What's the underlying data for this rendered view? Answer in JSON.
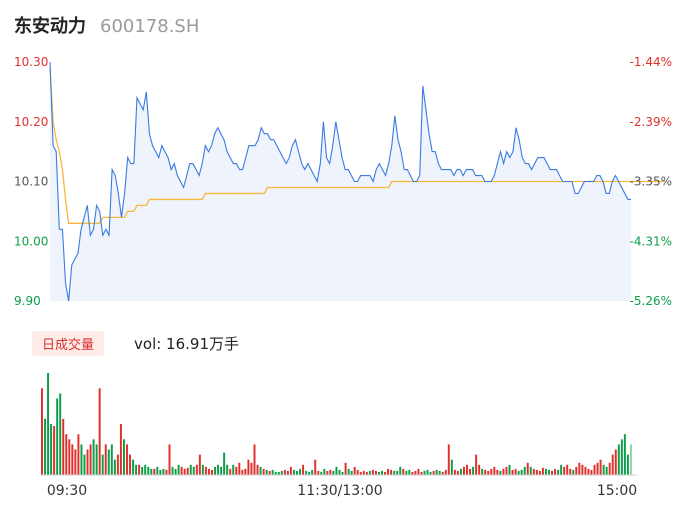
{
  "header": {
    "name": "东安动力",
    "code": "600178.SH"
  },
  "volume": {
    "badge": "日成交量",
    "text": "vol: 16.91万手"
  },
  "colors": {
    "price_line": "#3a7be0",
    "avg_line": "#f6b83c",
    "up": "#e0302c",
    "down": "#0e9e4a",
    "area_fill": "#eef3fc"
  },
  "chart_data": [
    {
      "type": "line",
      "title": "",
      "y_left_ticks": [
        "10.30",
        "10.20",
        "10.10",
        "10.00",
        "9.90"
      ],
      "y_right_ticks": [
        "-1.44%",
        "-2.39%",
        "-3.35%",
        "-4.31%",
        "-5.26%"
      ],
      "ylim": [
        9.9,
        10.3
      ],
      "x_ticks": [
        "09:30",
        "11:30/13:00",
        "15:00"
      ],
      "grid": false,
      "series": [
        {
          "values": [
            10.3,
            10.16,
            10.15,
            10.02,
            10.02,
            9.93,
            9.9,
            9.96,
            9.97,
            9.98,
            10.02,
            10.04,
            10.06,
            10.01,
            10.02,
            10.06,
            10.05,
            10.01,
            10.02,
            10.01,
            10.12,
            10.11,
            10.08,
            10.04,
            10.08,
            10.14,
            10.13,
            10.13,
            10.24,
            10.23,
            10.22,
            10.25,
            10.18,
            10.16,
            10.15,
            10.14,
            10.16,
            10.15,
            10.14,
            10.12,
            10.13,
            10.11,
            10.1,
            10.09,
            10.11,
            10.13,
            10.13,
            10.12,
            10.11,
            10.13,
            10.16,
            10.15,
            10.16,
            10.18,
            10.19,
            10.18,
            10.17,
            10.15,
            10.14,
            10.13,
            10.13,
            10.12,
            10.12,
            10.14,
            10.16,
            10.16,
            10.16,
            10.17,
            10.19,
            10.18,
            10.18,
            10.17,
            10.17,
            10.16,
            10.15,
            10.14,
            10.13,
            10.14,
            10.16,
            10.17,
            10.15,
            10.13,
            10.12,
            10.13,
            10.12,
            10.11,
            10.1,
            10.13,
            10.2,
            10.14,
            10.13,
            10.16,
            10.2,
            10.17,
            10.14,
            10.12,
            10.12,
            10.11,
            10.1,
            10.1,
            10.11,
            10.11,
            10.11,
            10.11,
            10.1,
            10.12,
            10.13,
            10.12,
            10.11,
            10.13,
            10.16,
            10.21,
            10.17,
            10.15,
            10.12,
            10.12,
            10.11,
            10.1,
            10.1,
            10.11,
            10.26,
            10.22,
            10.18,
            10.15,
            10.15,
            10.13,
            10.12,
            10.12,
            10.12,
            10.12,
            10.11,
            10.12,
            10.12,
            10.11,
            10.12,
            10.12,
            10.12,
            10.11,
            10.11,
            10.11,
            10.1,
            10.1,
            10.1,
            10.11,
            10.13,
            10.15,
            10.13,
            10.15,
            10.14,
            10.15,
            10.19,
            10.17,
            10.14,
            10.13,
            10.13,
            10.12,
            10.13,
            10.14,
            10.14,
            10.14,
            10.13,
            10.12,
            10.12,
            10.12,
            10.11,
            10.1,
            10.1,
            10.1,
            10.1,
            10.08,
            10.08,
            10.09,
            10.1,
            10.1,
            10.1,
            10.1,
            10.11,
            10.11,
            10.1,
            10.08,
            10.08,
            10.1,
            10.11,
            10.1,
            10.09,
            10.08,
            10.07,
            10.07
          ],
          "name": ""
        },
        {
          "values": [
            10.29,
            10.2,
            10.17,
            10.15,
            10.12,
            10.07,
            10.03,
            10.03,
            10.03,
            10.03,
            10.03,
            10.03,
            10.03,
            10.03,
            10.03,
            10.03,
            10.03,
            10.04,
            10.04,
            10.04,
            10.04,
            10.04,
            10.04,
            10.04,
            10.04,
            10.05,
            10.05,
            10.05,
            10.06,
            10.06,
            10.06,
            10.06,
            10.07,
            10.07,
            10.07,
            10.07,
            10.07,
            10.07,
            10.07,
            10.07,
            10.07,
            10.07,
            10.07,
            10.07,
            10.07,
            10.07,
            10.07,
            10.07,
            10.07,
            10.07,
            10.08,
            10.08,
            10.08,
            10.08,
            10.08,
            10.08,
            10.08,
            10.08,
            10.08,
            10.08,
            10.08,
            10.08,
            10.08,
            10.08,
            10.08,
            10.08,
            10.08,
            10.08,
            10.08,
            10.08,
            10.09,
            10.09,
            10.09,
            10.09,
            10.09,
            10.09,
            10.09,
            10.09,
            10.09,
            10.09,
            10.09,
            10.09,
            10.09,
            10.09,
            10.09,
            10.09,
            10.09,
            10.09,
            10.09,
            10.09,
            10.09,
            10.09,
            10.09,
            10.09,
            10.09,
            10.09,
            10.09,
            10.09,
            10.09,
            10.09,
            10.09,
            10.09,
            10.09,
            10.09,
            10.09,
            10.09,
            10.09,
            10.09,
            10.09,
            10.09,
            10.1,
            10.1,
            10.1,
            10.1,
            10.1,
            10.1,
            10.1,
            10.1,
            10.1,
            10.1,
            10.1,
            10.1,
            10.1,
            10.1,
            10.1,
            10.1,
            10.1,
            10.1,
            10.1,
            10.1,
            10.1,
            10.1,
            10.1,
            10.1,
            10.1,
            10.1,
            10.1,
            10.1,
            10.1,
            10.1,
            10.1,
            10.1,
            10.1,
            10.1,
            10.1,
            10.1,
            10.1,
            10.1,
            10.1,
            10.1,
            10.1,
            10.1,
            10.1,
            10.1,
            10.1,
            10.1,
            10.1,
            10.1,
            10.1,
            10.1,
            10.1,
            10.1,
            10.1,
            10.1,
            10.1,
            10.1,
            10.1,
            10.1,
            10.1,
            10.1,
            10.1,
            10.1,
            10.1,
            10.1,
            10.1,
            10.1,
            10.1,
            10.1,
            10.1,
            10.1,
            10.1,
            10.1,
            10.1,
            10.1,
            10.1,
            10.1,
            10.1,
            10.1,
            10.1,
            10.1,
            10.1,
            10.1,
            10.1,
            10.1,
            10.1,
            10.1,
            10.1,
            10.1,
            10.1
          ],
          "name": ""
        }
      ]
    },
    {
      "type": "bar",
      "title": "",
      "series": [
        {
          "name": "",
          "values": [
            0.85,
            0.55,
            1.0,
            0.5,
            0.48,
            0.75,
            0.8,
            0.55,
            0.4,
            0.35,
            0.3,
            0.25,
            0.4,
            0.3,
            0.2,
            0.25,
            0.3,
            0.35,
            0.3,
            0.85,
            0.2,
            0.3,
            0.25,
            0.3,
            0.15,
            0.2,
            0.5,
            0.35,
            0.3,
            0.2,
            0.15,
            0.1,
            0.1,
            0.08,
            0.1,
            0.08,
            0.06,
            0.06,
            0.08,
            0.05,
            0.06,
            0.05,
            0.3,
            0.08,
            0.06,
            0.1,
            0.08,
            0.06,
            0.07,
            0.1,
            0.08,
            0.1,
            0.2,
            0.1,
            0.08,
            0.06,
            0.05,
            0.08,
            0.1,
            0.08,
            0.22,
            0.1,
            0.06,
            0.1,
            0.08,
            0.12,
            0.05,
            0.06,
            0.15,
            0.12,
            0.3,
            0.1,
            0.08,
            0.06,
            0.05,
            0.04,
            0.05,
            0.03,
            0.03,
            0.04,
            0.05,
            0.04,
            0.08,
            0.05,
            0.04,
            0.06,
            0.1,
            0.04,
            0.03,
            0.05,
            0.15,
            0.04,
            0.03,
            0.06,
            0.04,
            0.05,
            0.04,
            0.08,
            0.05,
            0.03,
            0.12,
            0.06,
            0.04,
            0.08,
            0.05,
            0.03,
            0.04,
            0.03,
            0.04,
            0.05,
            0.04,
            0.03,
            0.04,
            0.03,
            0.06,
            0.05,
            0.04,
            0.04,
            0.08,
            0.06,
            0.04,
            0.05,
            0.03,
            0.04,
            0.06,
            0.03,
            0.04,
            0.05,
            0.03,
            0.04,
            0.05,
            0.04,
            0.03,
            0.05,
            0.3,
            0.15,
            0.05,
            0.04,
            0.06,
            0.08,
            0.1,
            0.06,
            0.08,
            0.2,
            0.1,
            0.06,
            0.05,
            0.04,
            0.06,
            0.08,
            0.05,
            0.04,
            0.06,
            0.08,
            0.1,
            0.05,
            0.06,
            0.04,
            0.05,
            0.08,
            0.12,
            0.08,
            0.06,
            0.05,
            0.04,
            0.07,
            0.06,
            0.05,
            0.04,
            0.06,
            0.05,
            0.1,
            0.08,
            0.1,
            0.06,
            0.05,
            0.08,
            0.12,
            0.1,
            0.08,
            0.06,
            0.05,
            0.1,
            0.12,
            0.15,
            0.1,
            0.08,
            0.12,
            0.2,
            0.25,
            0.3,
            0.35,
            0.4,
            0.2,
            0.3
          ]
        }
      ]
    }
  ]
}
